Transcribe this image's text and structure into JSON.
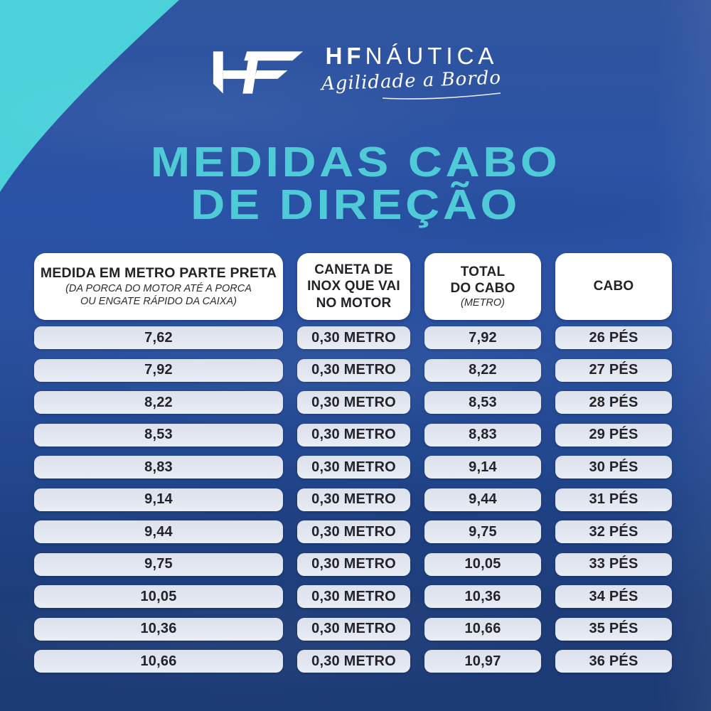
{
  "brand": {
    "monogram": "HF",
    "wordmark_bold": "HF",
    "wordmark_rest": "NÁUTICA",
    "tagline": "Agilidade a Bordo"
  },
  "title": {
    "line1": "MEDIDAS CABO",
    "line2": "DE DIREÇÃO"
  },
  "colors": {
    "teal_corner": "#4bd1da",
    "blue_top": "#2e55a6",
    "blue_bottom": "#1c3a74",
    "title_cyan": "#4ecbd6",
    "header_cell_bg": "#ffffff",
    "data_cell_bg": "#e2e6f0",
    "text_dark": "#232329",
    "logo_white": "#ffffff"
  },
  "chart_data": {
    "type": "table",
    "title": "MEDIDAS CABO DE DIREÇÃO",
    "columns": [
      {
        "title_lines": [
          "MEDIDA EM METRO PARTE PRETA"
        ],
        "subtitle_lines": [
          "(DA PORCA DO MOTOR ATÉ A PORCA",
          "OU ENGATE RÁPIDO DA CAIXA)"
        ]
      },
      {
        "title_lines": [
          "CANETA DE",
          "INOX QUE VAI",
          "NO MOTOR"
        ],
        "subtitle_lines": []
      },
      {
        "title_lines": [
          "TOTAL",
          "DO CABO"
        ],
        "subtitle_lines": [
          "(METRO)"
        ]
      },
      {
        "title_lines": [
          "CABO"
        ],
        "subtitle_lines": []
      }
    ],
    "rows": [
      [
        "7,62",
        "0,30 METRO",
        "7,92",
        "26 PÉS"
      ],
      [
        "7,92",
        "0,30 METRO",
        "8,22",
        "27 PÉS"
      ],
      [
        "8,22",
        "0,30 METRO",
        "8,53",
        "28 PÉS"
      ],
      [
        "8,53",
        "0,30 METRO",
        "8,83",
        "29 PÉS"
      ],
      [
        "8,83",
        "0,30 METRO",
        "9,14",
        "30 PÉS"
      ],
      [
        "9,14",
        "0,30 METRO",
        "9,44",
        "31 PÉS"
      ],
      [
        "9,44",
        "0,30 METRO",
        "9,75",
        "32 PÉS"
      ],
      [
        "9,75",
        "0,30 METRO",
        "10,05",
        "33 PÉS"
      ],
      [
        "10,05",
        "0,30 METRO",
        "10,36",
        "34 PÉS"
      ],
      [
        "10,36",
        "0,30 METRO",
        "10,66",
        "35 PÉS"
      ],
      [
        "10,66",
        "0,30 METRO",
        "10,97",
        "36 PÉS"
      ]
    ]
  }
}
